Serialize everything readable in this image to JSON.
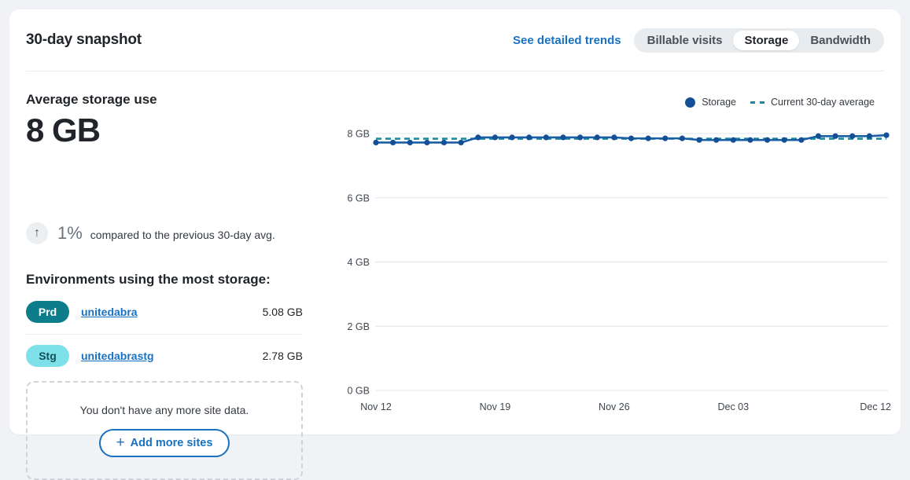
{
  "page": {
    "background": "#f0f2f5"
  },
  "header": {
    "title": "30-day snapshot",
    "link_label": "See detailed trends",
    "link_color": "#1971c2",
    "tabs": [
      {
        "label": "Billable visits",
        "active": false
      },
      {
        "label": "Storage",
        "active": true
      },
      {
        "label": "Bandwidth",
        "active": false
      }
    ]
  },
  "summary": {
    "heading": "Average storage use",
    "value": "8 GB",
    "delta_arrow_glyph": "↑",
    "delta_value": "1%",
    "delta_text": "compared to the previous 30-day avg."
  },
  "environments": {
    "heading": "Environments using the most storage:",
    "rows": [
      {
        "badge": "Prd",
        "badge_bg": "#0d7d8c",
        "badge_color": "#ffffff",
        "name": "unitedabra",
        "value": "5.08 GB"
      },
      {
        "badge": "Stg",
        "badge_bg": "#7ee0e9",
        "badge_color": "#134f58",
        "name": "unitedabrastg",
        "value": "2.78 GB"
      }
    ],
    "empty_text": "You don't have any more site data.",
    "add_button": {
      "plus_glyph": "+",
      "label": "Add more sites"
    }
  },
  "chart_data": {
    "type": "line",
    "title": "",
    "xlabel": "",
    "ylabel": "",
    "ylim": [
      0,
      8
    ],
    "grid": true,
    "legend_position": "top-right",
    "x": [
      "Nov 12",
      "Nov 13",
      "Nov 14",
      "Nov 15",
      "Nov 16",
      "Nov 17",
      "Nov 18",
      "Nov 19",
      "Nov 20",
      "Nov 21",
      "Nov 22",
      "Nov 23",
      "Nov 24",
      "Nov 25",
      "Nov 26",
      "Nov 27",
      "Nov 28",
      "Nov 29",
      "Nov 30",
      "Dec 01",
      "Dec 02",
      "Dec 03",
      "Dec 04",
      "Dec 05",
      "Dec 06",
      "Dec 07",
      "Dec 08",
      "Dec 09",
      "Dec 10",
      "Dec 11",
      "Dec 12"
    ],
    "x_ticks": [
      {
        "index": 0,
        "label": "Nov 12"
      },
      {
        "index": 7,
        "label": "Nov 19"
      },
      {
        "index": 14,
        "label": "Nov 26"
      },
      {
        "index": 21,
        "label": "Dec 03"
      },
      {
        "index": 30,
        "label": "Dec 12"
      }
    ],
    "y_ticks": [
      {
        "value": 0,
        "label": "0 GB"
      },
      {
        "value": 2,
        "label": "2 GB"
      },
      {
        "value": 4,
        "label": "4 GB"
      },
      {
        "value": 6,
        "label": "6 GB"
      },
      {
        "value": 8,
        "label": "8 GB"
      }
    ],
    "series": [
      {
        "name": "Storage",
        "color": "#1a5fa6",
        "marker_color": "#124f97",
        "style": "solid",
        "values": [
          7.72,
          7.72,
          7.72,
          7.72,
          7.72,
          7.72,
          7.88,
          7.88,
          7.88,
          7.88,
          7.88,
          7.88,
          7.88,
          7.88,
          7.88,
          7.85,
          7.85,
          7.85,
          7.85,
          7.8,
          7.8,
          7.8,
          7.8,
          7.8,
          7.8,
          7.8,
          7.92,
          7.92,
          7.92,
          7.92,
          7.95
        ]
      },
      {
        "name": "Current 30-day average",
        "color": "#1e8a99",
        "style": "dashed",
        "value": 7.84
      }
    ]
  }
}
